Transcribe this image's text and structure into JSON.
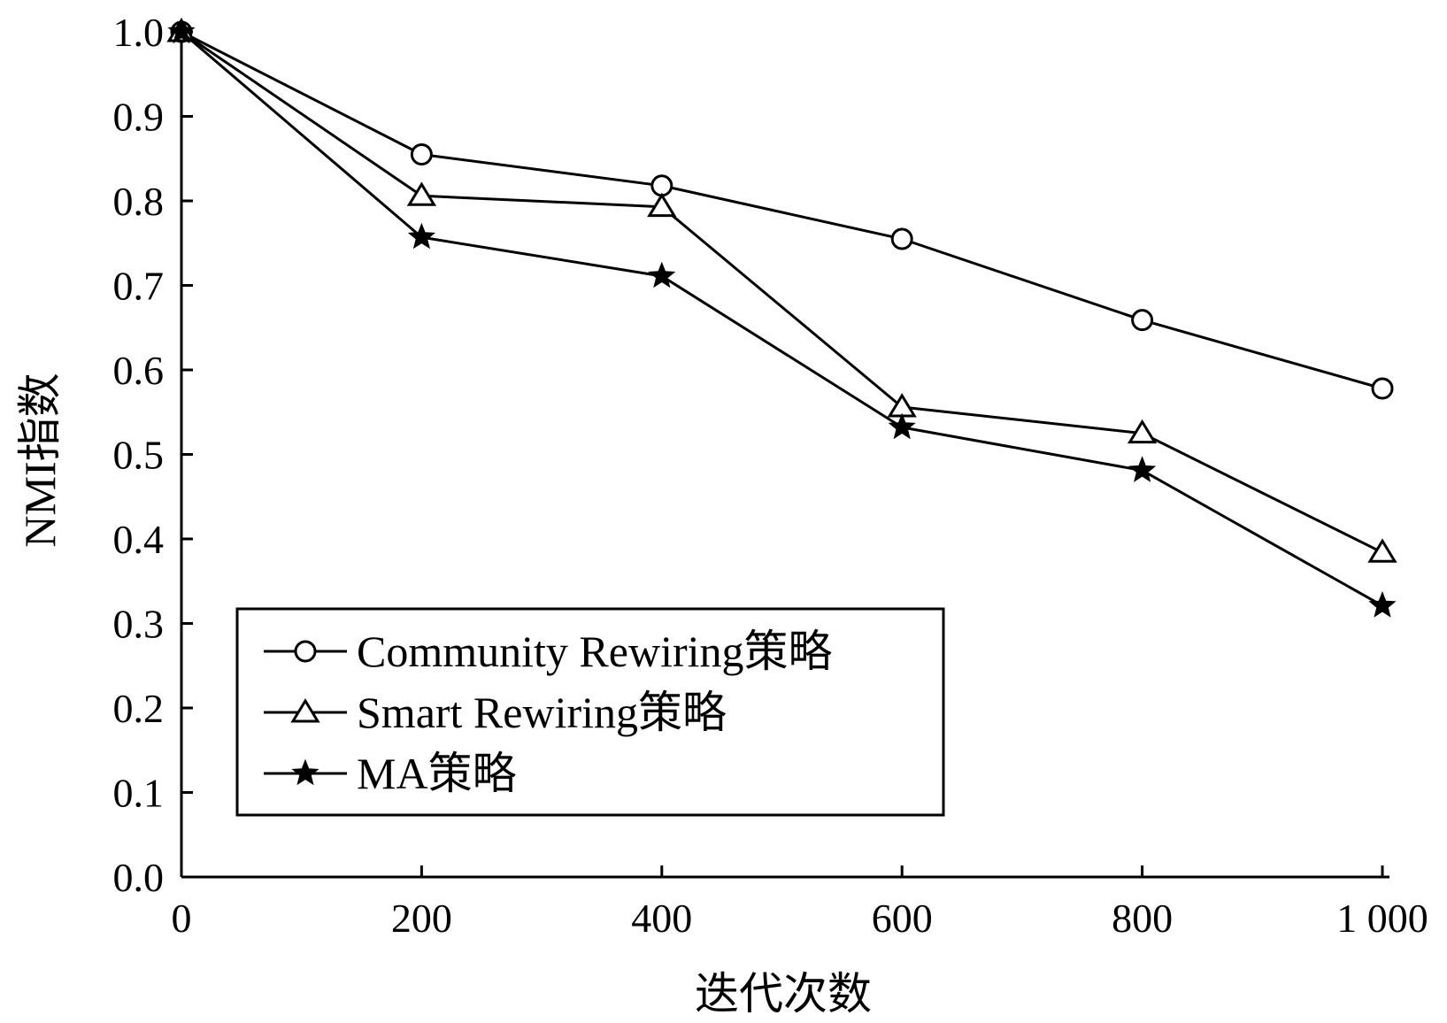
{
  "chart_data": {
    "type": "line",
    "title": "",
    "xlabel": "迭代次数",
    "ylabel": "NMI指数",
    "x": [
      0,
      200,
      400,
      600,
      800,
      1000
    ],
    "x_tick_labels": [
      "0",
      "200",
      "400",
      "600",
      "800",
      "1 000"
    ],
    "y_tick_labels": [
      "0.0",
      "0.1",
      "0.2",
      "0.3",
      "0.4",
      "0.5",
      "0.6",
      "0.7",
      "0.8",
      "0.9",
      "1.0"
    ],
    "xlim": [
      0,
      1000
    ],
    "ylim": [
      0,
      1.0
    ],
    "grid": false,
    "legend_position": "bottom-left",
    "series": [
      {
        "name": "Community Rewiring策略",
        "marker": "circle",
        "values": [
          1.0,
          0.855,
          0.818,
          0.755,
          0.659,
          0.578
        ]
      },
      {
        "name": "Smart Rewiring策略",
        "marker": "triangle",
        "values": [
          1.0,
          0.806,
          0.793,
          0.556,
          0.525,
          0.384
        ]
      },
      {
        "name": "MA策略",
        "marker": "star",
        "values": [
          1.0,
          0.757,
          0.711,
          0.532,
          0.481,
          0.321
        ]
      }
    ],
    "line_color": "#000000"
  }
}
